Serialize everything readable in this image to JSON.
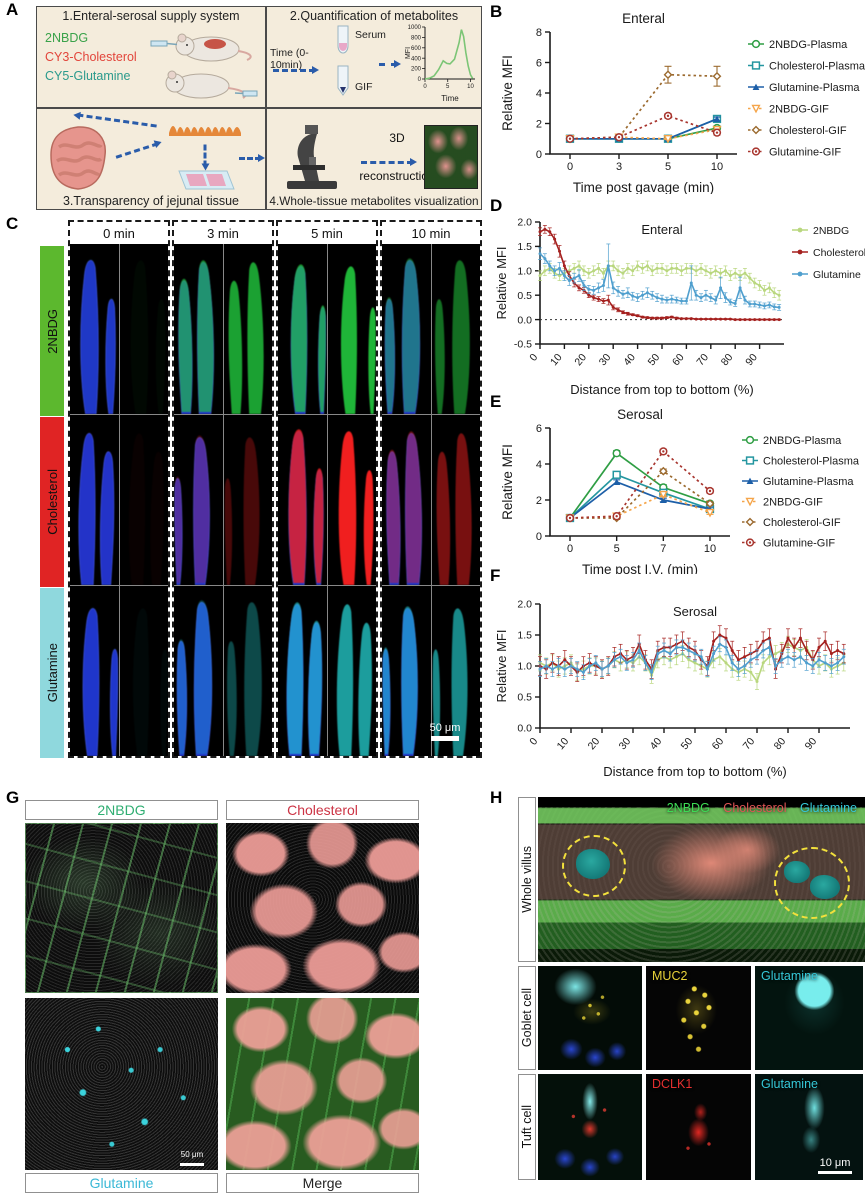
{
  "panel_labels": {
    "A": "A",
    "B": "B",
    "C": "C",
    "D": "D",
    "E": "E",
    "F": "F",
    "G": "G",
    "H": "H"
  },
  "panelA": {
    "box1": {
      "title": "1.Enteral-serosal supply system",
      "tracers": [
        {
          "label": "2NBDG",
          "color": "#3aa24a"
        },
        {
          "label": "CY3-Cholesterol",
          "color": "#e2453b"
        },
        {
          "label": "CY5-Glutamine",
          "color": "#2a9a8c"
        }
      ]
    },
    "box2": {
      "title": "2.Quantification of metabolites",
      "time_label": "Time (0-10min)",
      "serum_label": "Serum",
      "gif_label": "GIF"
    },
    "box3": {
      "title": "3.Transparency of jejunal tissue"
    },
    "box4": {
      "title": "4.Whole-tissue metabolites visualization",
      "arrow_line1": "3D",
      "arrow_line2": "reconstruction"
    }
  },
  "panelC": {
    "timepoints": [
      "0 min",
      "3 min",
      "5 min",
      "10 min"
    ],
    "rows": [
      {
        "label": "2NBDG",
        "bar_color": "#5cb82e",
        "channel": "#22c93e",
        "intensity": [
          0.04,
          0.8,
          0.9,
          0.55
        ]
      },
      {
        "label": "Cholesterol",
        "bar_color": "#e02424",
        "channel": "#f01f1f",
        "intensity": [
          0.03,
          0.3,
          1.0,
          0.5
        ]
      },
      {
        "label": "Glutamine",
        "bar_color": "#8fd8dd",
        "channel": "#25d2d2",
        "intensity": [
          0.03,
          0.35,
          0.75,
          0.65
        ]
      }
    ],
    "scale_bar": "50 μm"
  },
  "panelG": {
    "labels": {
      "tl": "2NBDG",
      "tr": "Cholesterol",
      "bl": "Glutamine",
      "br": "Merge"
    },
    "label_colors": {
      "tl": "#2fae72",
      "tr": "#cc3344",
      "bl": "#3bb8d6",
      "br": "#222222"
    },
    "scale_bar": "50 μm"
  },
  "panelH": {
    "row_labels": [
      "Whole villus",
      "Goblet cell",
      "Tuft cell"
    ],
    "legend": [
      {
        "label": "2NBDG",
        "color": "#3ddc55"
      },
      {
        "label": "Cholesterol",
        "color": "#e05555"
      },
      {
        "label": "Glutamine",
        "color": "#35c8d8"
      }
    ],
    "goblet": {
      "mid_label": "MUC2",
      "mid_color": "#e8d23a",
      "right_label": "Glutamine",
      "right_color": "#35c8d8"
    },
    "tuft": {
      "mid_label": "DCLK1",
      "mid_color": "#e53030",
      "right_label": "Glutamine",
      "right_color": "#35c8d8"
    },
    "scale_bar": "10 μm"
  },
  "chart_data": [
    {
      "id": "B",
      "type": "line",
      "title": "Enteral",
      "ylabel": "Relative MFI",
      "xlabel": "Time post gavage (min)",
      "x": [
        0,
        3,
        5,
        10
      ],
      "ylim": [
        0,
        8
      ],
      "yticks": [
        0,
        2,
        4,
        6,
        8
      ],
      "legend_position": "right",
      "series": [
        {
          "name": "2NBDG-Plasma",
          "color": "#2f9e44",
          "marker": "circle",
          "line": "solid",
          "y": [
            1,
            1,
            1,
            1.7
          ],
          "e": [
            0.05,
            0.05,
            0.05,
            0.15
          ]
        },
        {
          "name": "Cholesterol-Plasma",
          "color": "#2496a0",
          "marker": "square",
          "line": "solid",
          "y": [
            1,
            1,
            1,
            2.3
          ],
          "e": [
            0.05,
            0.05,
            0.05,
            0.12
          ]
        },
        {
          "name": "Glutamine-Plasma",
          "color": "#1d5fa8",
          "marker": "triangle",
          "line": "solid",
          "y": [
            1,
            1,
            1,
            2.3
          ],
          "e": [
            0.05,
            0.05,
            0.05,
            0.12
          ]
        },
        {
          "name": "2NBDG-GIF",
          "color": "#f5a54a",
          "marker": "triangle-down",
          "line": "dotted",
          "y": [
            1,
            1.1,
            1,
            1.6
          ],
          "e": [
            0.05,
            0.08,
            0.05,
            0.15
          ]
        },
        {
          "name": "Cholesterol-GIF",
          "color": "#9c6b30",
          "marker": "diamond",
          "line": "dotted",
          "y": [
            1,
            1.1,
            5.2,
            5.1
          ],
          "e": [
            0.05,
            0.08,
            0.55,
            0.65
          ]
        },
        {
          "name": "Glutamine-GIF",
          "color": "#a8352e",
          "marker": "circle-open",
          "line": "dotted",
          "y": [
            1,
            1.1,
            2.5,
            1.4
          ],
          "e": [
            0.05,
            0.08,
            0.15,
            0.15
          ]
        }
      ]
    },
    {
      "id": "D",
      "type": "profile",
      "title": "Enteral",
      "ylabel": "Relative MFI",
      "xlabel": "Distance from top to bottom (%)",
      "ylim": [
        -0.5,
        2.0
      ],
      "yticks": [
        -0.5,
        0.0,
        0.5,
        1.0,
        1.5,
        2.0
      ],
      "xticks": [
        0,
        10,
        20,
        30,
        40,
        50,
        60,
        70,
        80,
        90
      ],
      "xmax": 100,
      "zero_line": true,
      "legend_position": "top-right",
      "x": [
        0,
        2,
        4,
        6,
        8,
        10,
        12,
        14,
        16,
        18,
        20,
        22,
        24,
        26,
        28,
        30,
        32,
        34,
        36,
        38,
        40,
        42,
        44,
        46,
        48,
        50,
        52,
        54,
        56,
        58,
        60,
        62,
        64,
        66,
        68,
        70,
        72,
        74,
        76,
        78,
        80,
        82,
        84,
        86,
        88,
        90,
        92,
        94,
        96,
        98
      ],
      "series": [
        {
          "name": "2NBDG",
          "color": "#b9d77e",
          "marker": "dot",
          "line": "solid",
          "e_default": 0.1,
          "y": [
            0.9,
            1.0,
            1.05,
            0.95,
            0.9,
            0.95,
            1.0,
            1.05,
            1.1,
            1.0,
            0.95,
            1.0,
            1.05,
            0.95,
            1.1,
            1.1,
            1.0,
            0.95,
            1.05,
            1.0,
            1.1,
            1.05,
            1.1,
            1.0,
            1.05,
            1.05,
            1.0,
            1.05,
            1.05,
            1.0,
            1.05,
            1.05,
            1.0,
            1.05,
            1.0,
            0.95,
            1.0,
            0.95,
            1.0,
            0.9,
            0.95,
            0.9,
            0.95,
            0.85,
            0.75,
            0.7,
            0.6,
            0.65,
            0.55,
            0.5
          ]
        },
        {
          "name": "Cholesterol",
          "color": "#a5211f",
          "marker": "dot",
          "line": "solid",
          "y": [
            1.8,
            1.85,
            1.8,
            1.65,
            1.4,
            1.1,
            0.9,
            0.75,
            0.65,
            0.6,
            0.5,
            0.45,
            0.42,
            0.38,
            0.4,
            0.25,
            0.2,
            0.15,
            0.12,
            0.1,
            0.08,
            0.05,
            0.04,
            0.03,
            0.03,
            0.03,
            0.04,
            0.05,
            0.03,
            0.02,
            0.02,
            0.02,
            0.01,
            0.01,
            0.01,
            0.01,
            0.01,
            0.01,
            0.01,
            0.01,
            0,
            0,
            0,
            0,
            0,
            0,
            0,
            0,
            0,
            0
          ],
          "e": [
            0.08,
            0.08,
            0.08,
            0.1,
            0.12,
            0.1,
            0.08,
            0.08,
            0.06,
            0.06,
            0.05,
            0.05,
            0.05,
            0.05,
            0.1,
            0.05,
            0.04,
            0.03,
            0.03,
            0.02,
            0.02,
            0.02,
            0.02,
            0.02,
            0.02,
            0.02,
            0.02,
            0.02,
            0.02,
            0.01,
            0.01,
            0.01,
            0.01,
            0.01,
            0.01,
            0.01,
            0.01,
            0.01,
            0.01,
            0.01,
            0.01,
            0.01,
            0.01,
            0.01,
            0.01,
            0.01,
            0.01,
            0.01,
            0.01,
            0.01
          ]
        },
        {
          "name": "Glutamine",
          "color": "#4f9fce",
          "marker": "dot",
          "line": "solid",
          "y": [
            1.35,
            1.25,
            1.1,
            1.0,
            1.05,
            0.9,
            0.8,
            0.85,
            0.9,
            0.7,
            0.62,
            0.6,
            0.65,
            0.7,
            1.1,
            0.65,
            0.58,
            0.52,
            0.55,
            0.48,
            0.45,
            0.5,
            0.55,
            0.5,
            0.45,
            0.42,
            0.4,
            0.42,
            0.4,
            0.38,
            0.38,
            0.75,
            0.5,
            0.45,
            0.5,
            0.45,
            0.4,
            0.65,
            0.45,
            0.36,
            0.33,
            0.65,
            0.4,
            0.32,
            0.32,
            0.3,
            0.28,
            0.3,
            0.26,
            0.25
          ],
          "e": [
            0.12,
            0.1,
            0.1,
            0.1,
            0.12,
            0.1,
            0.1,
            0.1,
            0.12,
            0.1,
            0.08,
            0.08,
            0.1,
            0.12,
            0.45,
            0.12,
            0.1,
            0.08,
            0.1,
            0.08,
            0.08,
            0.08,
            0.1,
            0.08,
            0.08,
            0.08,
            0.06,
            0.08,
            0.06,
            0.06,
            0.06,
            0.35,
            0.1,
            0.08,
            0.1,
            0.08,
            0.08,
            0.22,
            0.1,
            0.06,
            0.06,
            0.22,
            0.08,
            0.06,
            0.06,
            0.06,
            0.06,
            0.06,
            0.06,
            0.06
          ]
        }
      ]
    },
    {
      "id": "E",
      "type": "line",
      "title": "Serosal",
      "ylabel": "Relative MFI",
      "xlabel": "Time post I.V. (min)",
      "x": [
        0,
        5,
        7,
        10
      ],
      "ylim": [
        0,
        6
      ],
      "yticks": [
        0,
        2,
        4,
        6
      ],
      "legend_position": "right",
      "series": [
        {
          "name": "2NBDG-Plasma",
          "color": "#2f9e44",
          "marker": "circle",
          "line": "solid",
          "y": [
            1,
            4.6,
            2.7,
            1.8
          ],
          "e": [
            0.05,
            0.15,
            0.15,
            0.1
          ]
        },
        {
          "name": "Cholesterol-Plasma",
          "color": "#2496a0",
          "marker": "square",
          "line": "solid",
          "y": [
            1,
            3.4,
            2.4,
            1.5
          ],
          "e": [
            0.05,
            0.15,
            0.12,
            0.1
          ]
        },
        {
          "name": "Glutamine-Plasma",
          "color": "#1d5fa8",
          "marker": "triangle",
          "line": "solid",
          "y": [
            1,
            3.0,
            2.0,
            1.5
          ],
          "e": [
            0.05,
            0.12,
            0.1,
            0.1
          ]
        },
        {
          "name": "2NBDG-GIF",
          "color": "#f5a54a",
          "marker": "triangle-down",
          "line": "dotted",
          "y": [
            1,
            1.1,
            2.3,
            1.3
          ],
          "e": [
            0.05,
            0.08,
            0.12,
            0.1
          ]
        },
        {
          "name": "Cholesterol-GIF",
          "color": "#9c6b30",
          "marker": "diamond",
          "line": "dotted",
          "y": [
            1,
            1.0,
            3.6,
            1.8
          ],
          "e": [
            0.05,
            0.08,
            0.12,
            0.1
          ]
        },
        {
          "name": "Glutamine-GIF",
          "color": "#a8352e",
          "marker": "circle-open",
          "line": "dotted",
          "y": [
            1,
            1.1,
            4.7,
            2.5
          ],
          "e": [
            0.05,
            0.08,
            0.12,
            0.12
          ]
        }
      ]
    },
    {
      "id": "F",
      "type": "profile",
      "title": "Serosal",
      "ylabel": "Relative MFI",
      "xlabel": "Distance from top to bottom (%)",
      "ylim": [
        0,
        2.0
      ],
      "yticks": [
        0.0,
        0.5,
        1.0,
        1.5,
        2.0
      ],
      "xticks": [
        0,
        10,
        20,
        30,
        40,
        50,
        60,
        70,
        80,
        90
      ],
      "xmax": 100,
      "legend_position": "none",
      "x": [
        0,
        2,
        4,
        6,
        8,
        10,
        12,
        14,
        16,
        18,
        20,
        22,
        24,
        26,
        28,
        30,
        32,
        34,
        36,
        38,
        40,
        42,
        44,
        46,
        48,
        50,
        52,
        54,
        56,
        58,
        60,
        62,
        64,
        66,
        68,
        70,
        72,
        74,
        76,
        78,
        80,
        82,
        84,
        86,
        88,
        90,
        92,
        94,
        96,
        98
      ],
      "series": [
        {
          "name": "2NBDG",
          "color": "#b9d77e",
          "marker": "dot",
          "line": "solid",
          "e_default": 0.13,
          "y": [
            1.05,
            1.0,
            1.05,
            0.95,
            1.0,
            1.05,
            0.9,
            0.95,
            1.0,
            1.0,
            0.95,
            1.0,
            1.1,
            1.05,
            1.1,
            1.05,
            1.15,
            1.05,
            0.85,
            1.1,
            1.15,
            1.1,
            1.15,
            1.2,
            1.1,
            1.05,
            1.0,
            0.95,
            1.1,
            1.15,
            1.05,
            0.95,
            0.9,
            0.95,
            0.9,
            0.75,
            1.05,
            1.15,
            1.2,
            1.25,
            1.35,
            1.3,
            1.25,
            1.3,
            1.1,
            1.0,
            1.05,
            0.95,
            1.0,
            1.05
          ]
        },
        {
          "name": "Cholesterol",
          "color": "#a5211f",
          "marker": "dot",
          "line": "solid",
          "e_default": 0.15,
          "y": [
            1.0,
            0.95,
            1.05,
            1.0,
            1.1,
            1.0,
            0.9,
            1.0,
            1.05,
            1.0,
            0.95,
            1.0,
            1.15,
            1.2,
            1.1,
            1.15,
            1.35,
            1.1,
            0.95,
            1.25,
            1.3,
            1.3,
            1.35,
            1.4,
            1.3,
            1.25,
            1.1,
            1.0,
            1.4,
            1.5,
            1.45,
            1.25,
            1.1,
            1.15,
            1.2,
            1.25,
            1.4,
            1.45,
            0.95,
            1.2,
            1.45,
            1.3,
            1.45,
            1.25,
            1.1,
            1.3,
            1.4,
            1.2,
            1.25,
            1.2
          ]
        },
        {
          "name": "Glutamine",
          "color": "#4f9fce",
          "marker": "dot",
          "line": "solid",
          "e_default": 0.12,
          "y": [
            0.95,
            1.0,
            0.95,
            1.0,
            0.95,
            1.0,
            0.95,
            0.9,
            1.0,
            1.05,
            0.95,
            1.0,
            1.1,
            1.15,
            1.05,
            1.1,
            1.25,
            1.05,
            0.9,
            1.2,
            1.25,
            1.2,
            1.3,
            1.3,
            1.25,
            1.2,
            1.15,
            0.95,
            1.2,
            1.35,
            1.3,
            1.05,
            0.95,
            1.0,
            1.1,
            1.15,
            1.25,
            1.3,
            1.0,
            1.1,
            1.15,
            1.1,
            1.15,
            1.05,
            1.0,
            1.1,
            1.05,
            1.0,
            1.05,
            1.15
          ]
        }
      ]
    },
    {
      "id": "Ainset",
      "type": "profile",
      "title": "",
      "ylabel": "MFI",
      "xlabel": "Time",
      "ylim": [
        0,
        1000
      ],
      "yticks": [
        0,
        200,
        400,
        600,
        800,
        1000
      ],
      "xticks": [
        0,
        5,
        10
      ],
      "xmax": 11,
      "x": [
        0,
        1,
        2,
        3,
        4,
        4.8,
        5.5,
        6.5,
        7.5,
        8,
        8.5,
        9,
        9.5,
        10,
        10.5
      ],
      "series": [
        {
          "name": "MFI",
          "color": "#7cc576",
          "marker": "none",
          "line": "solid",
          "e_default": 0,
          "y": [
            0,
            15,
            60,
            180,
            350,
            300,
            290,
            380,
            700,
            950,
            820,
            500,
            250,
            80,
            10
          ]
        }
      ]
    }
  ]
}
